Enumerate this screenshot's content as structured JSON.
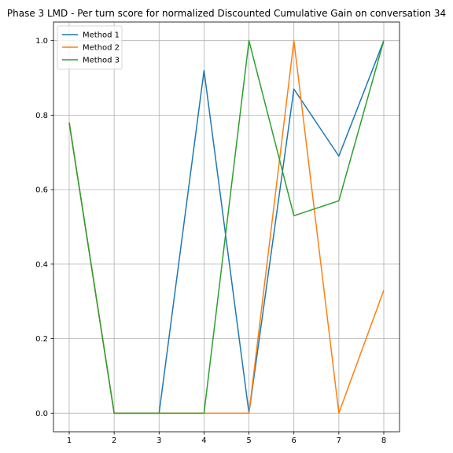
{
  "chart_data": {
    "type": "line",
    "title": "Phase 3 LMD - Per turn score for normalized Discounted Cumulative Gain on conversation 34",
    "xlabel": "",
    "ylabel": "",
    "x": [
      1,
      2,
      3,
      4,
      5,
      6,
      7,
      8
    ],
    "xlim": [
      0.65,
      8.35
    ],
    "ylim": [
      -0.05,
      1.05
    ],
    "x_ticks": [
      1,
      2,
      3,
      4,
      5,
      6,
      7,
      8
    ],
    "y_ticks": [
      0.0,
      0.2,
      0.4,
      0.6,
      0.8,
      1.0
    ],
    "x_tick_labels": [
      "1",
      "2",
      "3",
      "4",
      "5",
      "6",
      "7",
      "8"
    ],
    "y_tick_labels": [
      "0.0",
      "0.2",
      "0.4",
      "0.6",
      "0.8",
      "1.0"
    ],
    "grid": true,
    "legend_position": "top-left",
    "series": [
      {
        "name": "Method 1",
        "color": "#1f77b4",
        "values": [
          0.78,
          0.0,
          0.0,
          0.92,
          0.0,
          0.87,
          0.69,
          1.0
        ]
      },
      {
        "name": "Method 2",
        "color": "#ff7f0e",
        "values": [
          0.78,
          0.0,
          0.0,
          0.0,
          0.0,
          1.0,
          0.0,
          0.33
        ]
      },
      {
        "name": "Method 3",
        "color": "#2ca02c",
        "values": [
          0.78,
          0.0,
          0.0,
          0.0,
          1.0,
          0.53,
          0.57,
          1.0
        ]
      }
    ]
  }
}
